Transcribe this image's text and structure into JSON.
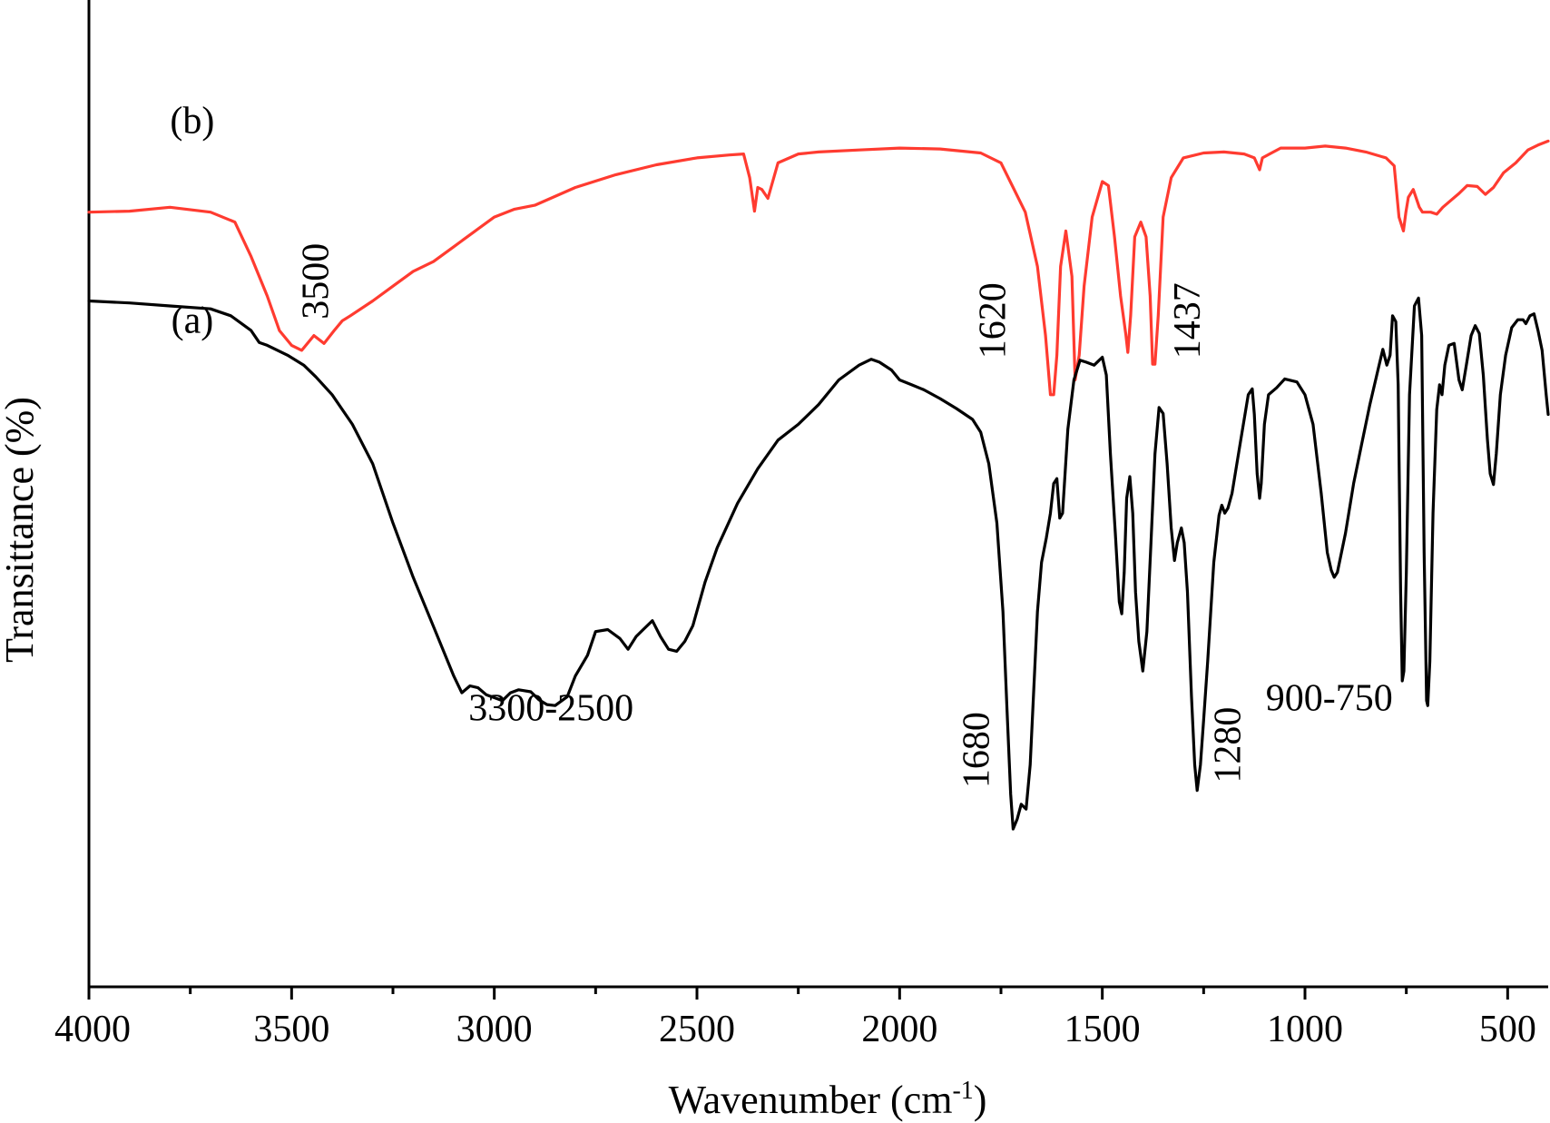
{
  "chart_data": {
    "type": "line",
    "title": "",
    "xlabel": "Wavenumber (cm",
    "xlabel_sup": "-1",
    "xlabel_close": ")",
    "ylabel": "Transittance (%)",
    "xlim": [
      4000,
      400
    ],
    "ylim": [
      0,
      100
    ],
    "x_reversed": true,
    "grid": false,
    "xticks": [
      {
        "value": 4000,
        "label": "4000"
      },
      {
        "value": 3500,
        "label": "3500"
      },
      {
        "value": 3000,
        "label": "3000"
      },
      {
        "value": 2500,
        "label": "2500"
      },
      {
        "value": 2000,
        "label": "2000"
      },
      {
        "value": 1500,
        "label": "1500"
      },
      {
        "value": 1000,
        "label": "1000"
      },
      {
        "value": 500,
        "label": "500"
      }
    ],
    "minor_ticks": [
      3750,
      3250,
      2750,
      2250,
      1750,
      1250,
      750
    ],
    "series": [
      {
        "name": "(b)",
        "color": "#ff3b30",
        "points": [
          [
            4000,
            78.5
          ],
          [
            3900,
            78.6
          ],
          [
            3800,
            79
          ],
          [
            3700,
            78.5
          ],
          [
            3640,
            77.5
          ],
          [
            3600,
            74
          ],
          [
            3560,
            70
          ],
          [
            3530,
            66.5
          ],
          [
            3500,
            65
          ],
          [
            3475,
            64.5
          ],
          [
            3445,
            66
          ],
          [
            3420,
            65.2
          ],
          [
            3395,
            66.5
          ],
          [
            3375,
            67.5
          ],
          [
            3355,
            68
          ],
          [
            3300,
            69.5
          ],
          [
            3250,
            71
          ],
          [
            3200,
            72.5
          ],
          [
            3150,
            73.5
          ],
          [
            3100,
            75
          ],
          [
            3050,
            76.5
          ],
          [
            3000,
            78
          ],
          [
            2950,
            78.8
          ],
          [
            2900,
            79.2
          ],
          [
            2800,
            81
          ],
          [
            2700,
            82.3
          ],
          [
            2600,
            83.3
          ],
          [
            2500,
            84
          ],
          [
            2420,
            84.3
          ],
          [
            2385,
            84.4
          ],
          [
            2370,
            82
          ],
          [
            2358,
            78.6
          ],
          [
            2350,
            81
          ],
          [
            2340,
            80.8
          ],
          [
            2325,
            79.9
          ],
          [
            2300,
            83.5
          ],
          [
            2250,
            84.4
          ],
          [
            2200,
            84.6
          ],
          [
            2100,
            84.8
          ],
          [
            2000,
            85
          ],
          [
            1900,
            84.9
          ],
          [
            1800,
            84.5
          ],
          [
            1750,
            83.5
          ],
          [
            1720,
            81
          ],
          [
            1690,
            78.5
          ],
          [
            1660,
            73
          ],
          [
            1640,
            66
          ],
          [
            1628,
            60
          ],
          [
            1620,
            60
          ],
          [
            1612,
            64
          ],
          [
            1603,
            73
          ],
          [
            1590,
            76.6
          ],
          [
            1575,
            72
          ],
          [
            1567,
            61.5
          ],
          [
            1557,
            64
          ],
          [
            1545,
            71
          ],
          [
            1525,
            78
          ],
          [
            1500,
            81.6
          ],
          [
            1485,
            81.2
          ],
          [
            1470,
            76
          ],
          [
            1455,
            70
          ],
          [
            1442,
            66.1
          ],
          [
            1437,
            64.3
          ],
          [
            1430,
            68
          ],
          [
            1420,
            76
          ],
          [
            1405,
            77.5
          ],
          [
            1392,
            76
          ],
          [
            1382,
            70
          ],
          [
            1376,
            63.1
          ],
          [
            1370,
            63.1
          ],
          [
            1362,
            68
          ],
          [
            1350,
            78
          ],
          [
            1330,
            82
          ],
          [
            1300,
            84
          ],
          [
            1250,
            84.5
          ],
          [
            1200,
            84.6
          ],
          [
            1150,
            84.4
          ],
          [
            1125,
            84
          ],
          [
            1112,
            82.8
          ],
          [
            1105,
            84
          ],
          [
            1060,
            85
          ],
          [
            1000,
            85
          ],
          [
            950,
            85.2
          ],
          [
            900,
            85
          ],
          [
            850,
            84.6
          ],
          [
            800,
            84
          ],
          [
            780,
            83.2
          ],
          [
            768,
            78
          ],
          [
            757,
            76.6
          ],
          [
            751,
            78.5
          ],
          [
            745,
            80
          ],
          [
            733,
            80.8
          ],
          [
            718,
            79
          ],
          [
            710,
            78.5
          ],
          [
            690,
            78.5
          ],
          [
            675,
            78.3
          ],
          [
            660,
            79
          ],
          [
            640,
            79.7
          ],
          [
            620,
            80.4
          ],
          [
            600,
            81.2
          ],
          [
            575,
            81.1
          ],
          [
            555,
            80.3
          ],
          [
            535,
            81
          ],
          [
            510,
            82.5
          ],
          [
            480,
            83.5
          ],
          [
            450,
            84.8
          ],
          [
            425,
            85.3
          ],
          [
            400,
            85.7
          ]
        ]
      },
      {
        "name": "(a)",
        "color": "#000000",
        "points": [
          [
            4000,
            69.5
          ],
          [
            3900,
            69.3
          ],
          [
            3800,
            69
          ],
          [
            3700,
            68.7
          ],
          [
            3650,
            68
          ],
          [
            3600,
            66.5
          ],
          [
            3580,
            65.3
          ],
          [
            3560,
            65
          ],
          [
            3510,
            64
          ],
          [
            3470,
            63
          ],
          [
            3440,
            61.8
          ],
          [
            3400,
            60
          ],
          [
            3350,
            57
          ],
          [
            3300,
            53
          ],
          [
            3250,
            47
          ],
          [
            3200,
            41.5
          ],
          [
            3150,
            36.5
          ],
          [
            3100,
            31.5
          ],
          [
            3080,
            29.8
          ],
          [
            3060,
            30.5
          ],
          [
            3040,
            30.3
          ],
          [
            3020,
            29.6
          ],
          [
            3000,
            29.3
          ],
          [
            2980,
            29
          ],
          [
            2960,
            29.8
          ],
          [
            2940,
            30.1
          ],
          [
            2910,
            29.9
          ],
          [
            2890,
            29.1
          ],
          [
            2870,
            28.6
          ],
          [
            2850,
            28.5
          ],
          [
            2820,
            29.4
          ],
          [
            2800,
            31.5
          ],
          [
            2770,
            33.6
          ],
          [
            2750,
            36
          ],
          [
            2720,
            36.2
          ],
          [
            2690,
            35.3
          ],
          [
            2670,
            34.2
          ],
          [
            2650,
            35.5
          ],
          [
            2630,
            36.3
          ],
          [
            2610,
            37.1
          ],
          [
            2590,
            35.5
          ],
          [
            2570,
            34.2
          ],
          [
            2550,
            34
          ],
          [
            2530,
            35
          ],
          [
            2510,
            36.6
          ],
          [
            2480,
            41
          ],
          [
            2450,
            44.5
          ],
          [
            2400,
            49
          ],
          [
            2350,
            52.5
          ],
          [
            2300,
            55.4
          ],
          [
            2250,
            57
          ],
          [
            2200,
            59
          ],
          [
            2150,
            61.5
          ],
          [
            2100,
            63
          ],
          [
            2070,
            63.6
          ],
          [
            2050,
            63.3
          ],
          [
            2020,
            62.5
          ],
          [
            2000,
            61.5
          ],
          [
            1970,
            61
          ],
          [
            1940,
            60.5
          ],
          [
            1900,
            59.6
          ],
          [
            1860,
            58.6
          ],
          [
            1820,
            57.5
          ],
          [
            1800,
            56.2
          ],
          [
            1780,
            53
          ],
          [
            1760,
            47
          ],
          [
            1745,
            38
          ],
          [
            1735,
            28
          ],
          [
            1726,
            19.5
          ],
          [
            1720,
            16
          ],
          [
            1710,
            17
          ],
          [
            1700,
            18.5
          ],
          [
            1688,
            18
          ],
          [
            1678,
            22.5
          ],
          [
            1668,
            31
          ],
          [
            1660,
            38
          ],
          [
            1650,
            43
          ],
          [
            1638,
            45.5
          ],
          [
            1628,
            48
          ],
          [
            1620,
            51
          ],
          [
            1612,
            51.5
          ],
          [
            1605,
            47.5
          ],
          [
            1598,
            48
          ],
          [
            1585,
            56.5
          ],
          [
            1570,
            61.5
          ],
          [
            1555,
            63.5
          ],
          [
            1540,
            63.3
          ],
          [
            1520,
            63
          ],
          [
            1500,
            63.8
          ],
          [
            1490,
            62
          ],
          [
            1480,
            54
          ],
          [
            1468,
            46
          ],
          [
            1458,
            39
          ],
          [
            1452,
            37.8
          ],
          [
            1446,
            42
          ],
          [
            1440,
            49.5
          ],
          [
            1432,
            51.7
          ],
          [
            1425,
            48
          ],
          [
            1418,
            40
          ],
          [
            1410,
            35
          ],
          [
            1400,
            32
          ],
          [
            1390,
            36
          ],
          [
            1380,
            45
          ],
          [
            1370,
            54
          ],
          [
            1360,
            58.7
          ],
          [
            1350,
            58.1
          ],
          [
            1340,
            53
          ],
          [
            1330,
            46.5
          ],
          [
            1322,
            43.2
          ],
          [
            1315,
            45
          ],
          [
            1305,
            46.5
          ],
          [
            1298,
            45
          ],
          [
            1290,
            40
          ],
          [
            1280,
            29.5
          ],
          [
            1272,
            22.5
          ],
          [
            1266,
            19.9
          ],
          [
            1258,
            22.5
          ],
          [
            1250,
            27
          ],
          [
            1240,
            33
          ],
          [
            1225,
            43
          ],
          [
            1212,
            47.8
          ],
          [
            1205,
            48.8
          ],
          [
            1198,
            48
          ],
          [
            1190,
            48.5
          ],
          [
            1180,
            50
          ],
          [
            1160,
            55
          ],
          [
            1140,
            60
          ],
          [
            1130,
            60.6
          ],
          [
            1125,
            58
          ],
          [
            1118,
            52
          ],
          [
            1112,
            49.5
          ],
          [
            1108,
            51
          ],
          [
            1100,
            57
          ],
          [
            1090,
            60
          ],
          [
            1070,
            60.7
          ],
          [
            1050,
            61.6
          ],
          [
            1020,
            61.3
          ],
          [
            1000,
            60
          ],
          [
            980,
            57
          ],
          [
            960,
            50
          ],
          [
            945,
            44
          ],
          [
            935,
            42.2
          ],
          [
            928,
            41.5
          ],
          [
            920,
            42
          ],
          [
            900,
            46
          ],
          [
            880,
            51
          ],
          [
            860,
            55
          ],
          [
            840,
            59
          ],
          [
            820,
            62.5
          ],
          [
            808,
            64.6
          ],
          [
            798,
            63
          ],
          [
            790,
            64
          ],
          [
            784,
            68
          ],
          [
            776,
            67.4
          ],
          [
            770,
            61
          ],
          [
            764,
            40
          ],
          [
            760,
            31
          ],
          [
            756,
            32
          ],
          [
            750,
            42
          ],
          [
            742,
            60
          ],
          [
            730,
            69
          ],
          [
            720,
            69.8
          ],
          [
            712,
            66
          ],
          [
            706,
            44
          ],
          [
            700,
            29
          ],
          [
            697,
            28.5
          ],
          [
            692,
            33
          ],
          [
            684,
            48
          ],
          [
            675,
            58.5
          ],
          [
            668,
            61
          ],
          [
            662,
            60
          ],
          [
            655,
            63
          ],
          [
            645,
            65
          ],
          [
            632,
            65.2
          ],
          [
            620,
            61.5
          ],
          [
            612,
            60.5
          ],
          [
            602,
            63
          ],
          [
            590,
            66
          ],
          [
            580,
            67
          ],
          [
            570,
            66.2
          ],
          [
            560,
            62
          ],
          [
            550,
            55.5
          ],
          [
            543,
            52
          ],
          [
            535,
            50.9
          ],
          [
            528,
            54
          ],
          [
            518,
            60
          ],
          [
            505,
            64
          ],
          [
            490,
            66.8
          ],
          [
            475,
            67.6
          ],
          [
            462,
            67.6
          ],
          [
            455,
            67.2
          ],
          [
            445,
            68
          ],
          [
            435,
            68.2
          ],
          [
            425,
            66.5
          ],
          [
            415,
            64.5
          ],
          [
            405,
            60
          ],
          [
            400,
            58
          ]
        ]
      }
    ],
    "series_labels": [
      {
        "text": "(b)",
        "x": 3745,
        "y": 86.5
      },
      {
        "text": "(a)",
        "x": 3745,
        "y": 66.3
      }
    ],
    "annotations": [
      {
        "text": "3500",
        "x": 3410,
        "y": 71.5,
        "rotate": -90
      },
      {
        "text": "3300-2500",
        "x": 2860,
        "y": 27,
        "rotate": 0
      },
      {
        "text": "1620",
        "x": 1740,
        "y": 67.5,
        "rotate": -90
      },
      {
        "text": "1437",
        "x": 1260,
        "y": 67.5,
        "rotate": -90
      },
      {
        "text": "1680",
        "x": 1780,
        "y": 24,
        "rotate": -90
      },
      {
        "text": "1280",
        "x": 1160,
        "y": 24.5,
        "rotate": -90
      },
      {
        "text": "900-750",
        "x": 940,
        "y": 28,
        "rotate": 0
      }
    ]
  }
}
